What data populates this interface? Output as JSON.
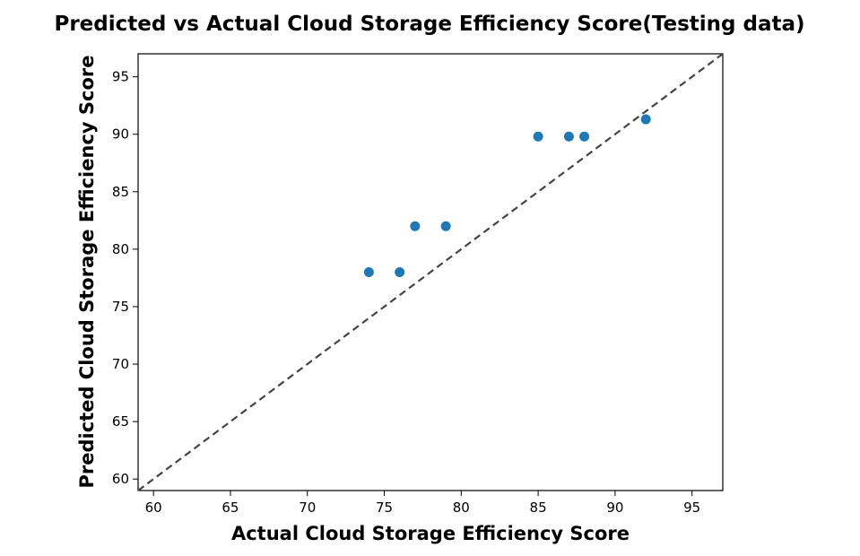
{
  "chart_data": {
    "type": "scatter",
    "title": "Predicted vs Actual Cloud Storage Efficiency Score(Testing data)",
    "xlabel": "Actual Cloud Storage Efficiency Score",
    "ylabel": "Predicted Cloud Storage Efficiency Score",
    "xlim": [
      59,
      97
    ],
    "ylim": [
      59,
      97
    ],
    "xticks": [
      60,
      65,
      70,
      75,
      80,
      85,
      90,
      95
    ],
    "yticks": [
      60,
      65,
      70,
      75,
      80,
      85,
      90,
      95
    ],
    "grid": false,
    "legend": "none",
    "series": [
      {
        "x": [
          74,
          76,
          77,
          79,
          85,
          87,
          88,
          92
        ],
        "y": [
          78,
          78,
          82,
          82,
          89.8,
          89.8,
          89.8,
          91.3
        ],
        "color": "#1f77b4"
      }
    ],
    "reference_line": {
      "style": "dashed",
      "color": "#444444",
      "description": "y = x"
    }
  }
}
